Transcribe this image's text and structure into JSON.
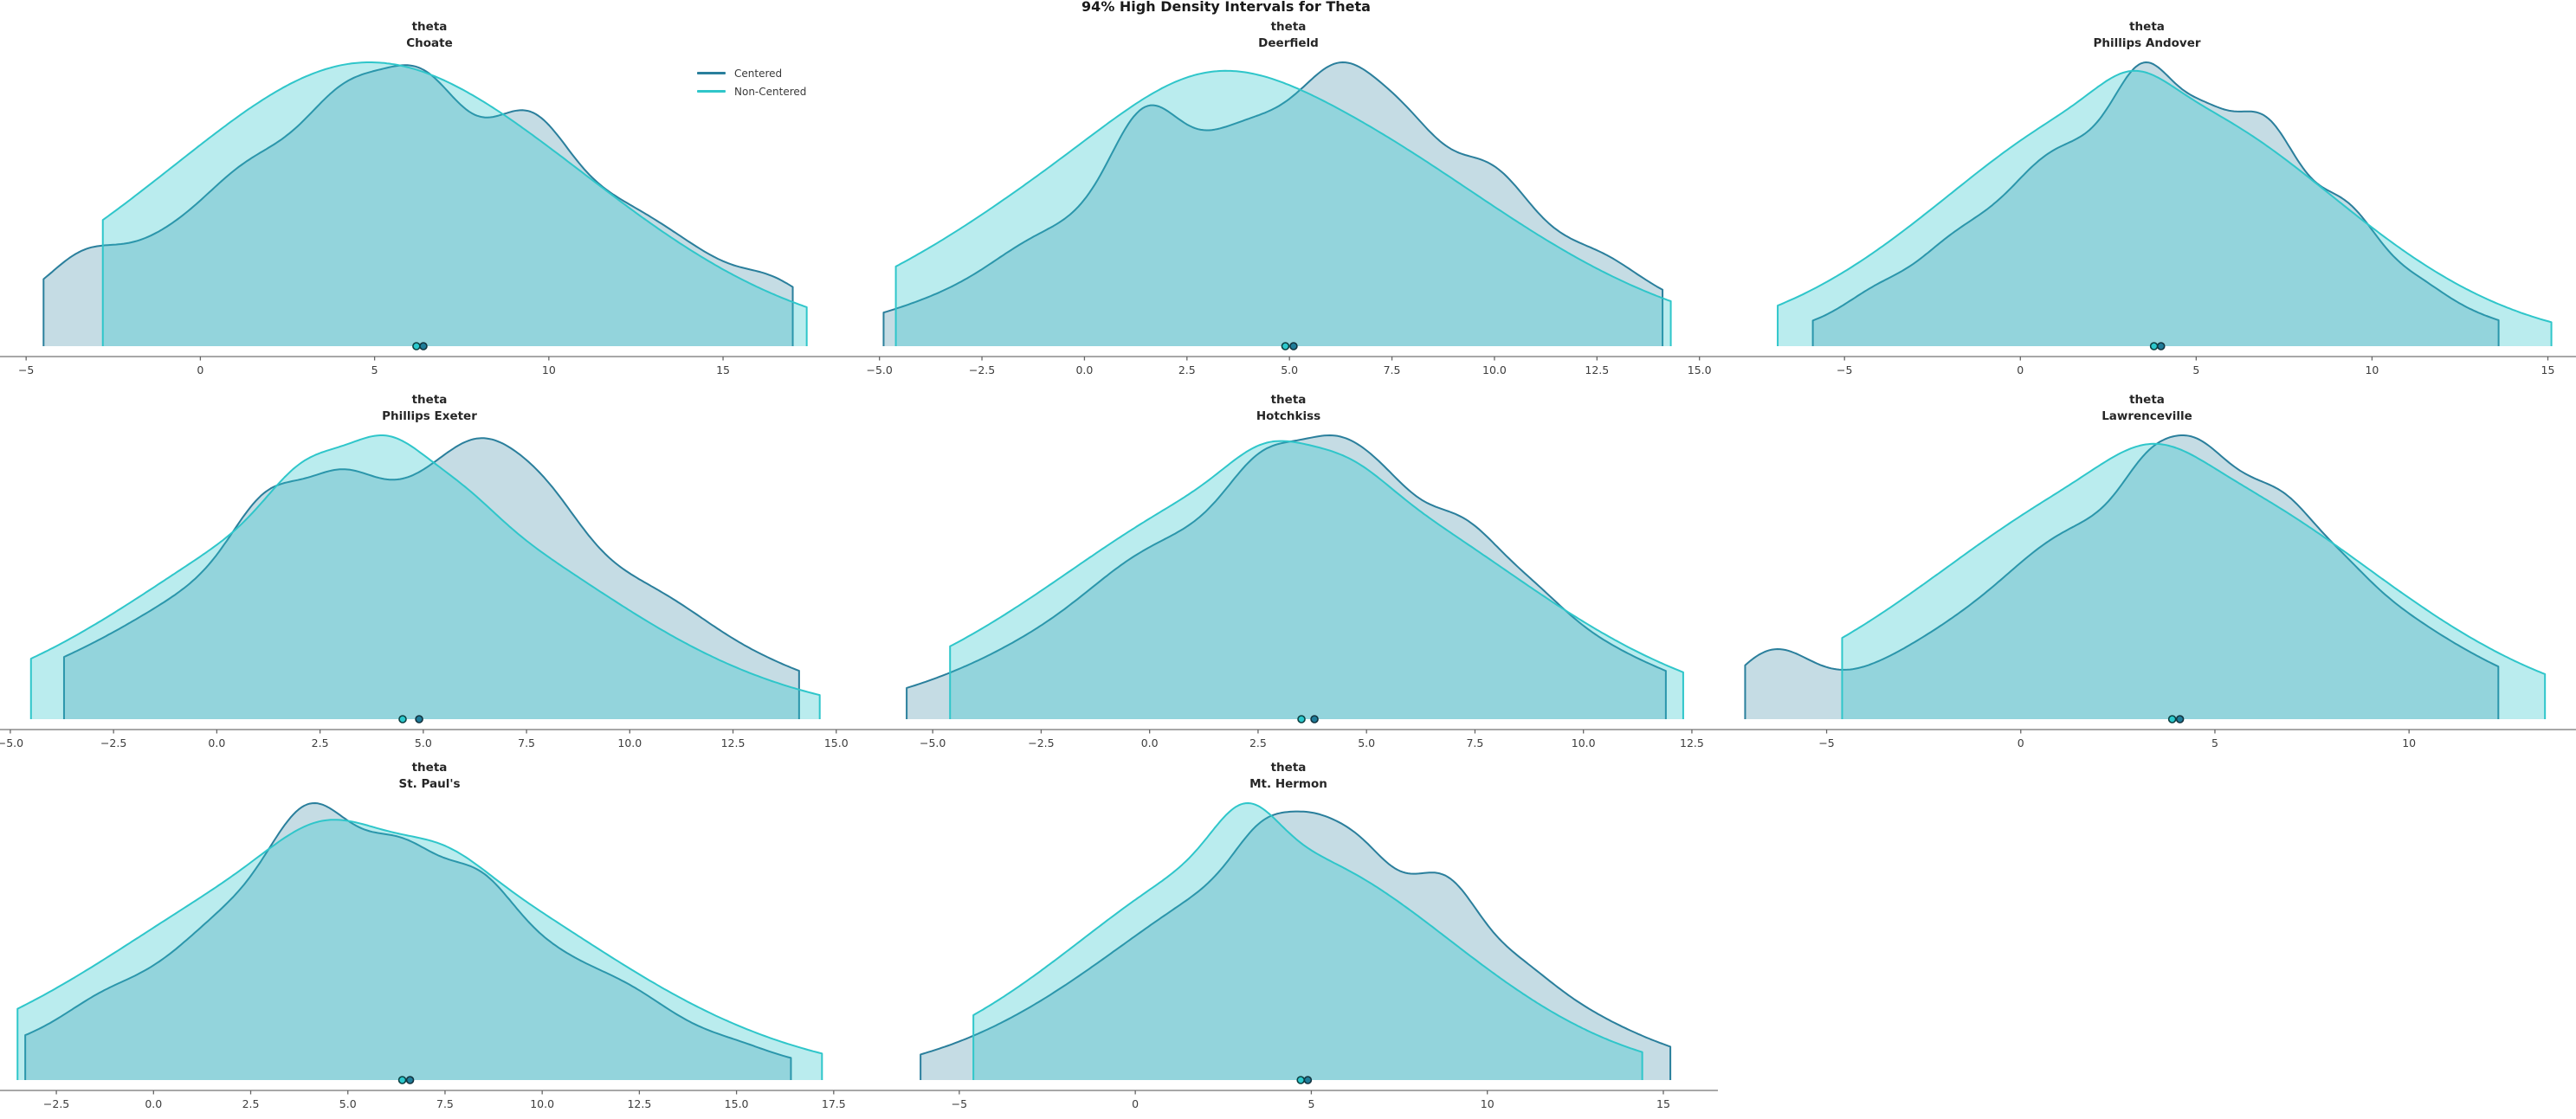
{
  "chart_data": {
    "type": "density",
    "suptitle": "94% High Density Intervals for Theta",
    "hdi_probability": "94%",
    "parameter": "theta",
    "legend": [
      {
        "name": "Centered",
        "color": "#2a7f9c"
      },
      {
        "name": "Non-Centered",
        "color": "#2fc6ca"
      }
    ],
    "style": {
      "centered_color": "#2a7f9c",
      "noncentered_color": "#2fc6ca",
      "centered_fill_opacity": 0.27,
      "noncentered_fill_opacity": 0.33,
      "axis_color": "#8c8c8c",
      "tick_mark_color": "#666666",
      "tick_label_color": "#3d3d3d",
      "title_color": "#262626",
      "centered_point": {
        "fill": "#1f7c99",
        "stroke": "#11333f"
      },
      "noncentered_point": {
        "fill": "#2cc9cd",
        "stroke": "#0c4143"
      }
    },
    "plots": [
      {
        "school": "Choate",
        "title_lines": [
          "theta",
          "Choate"
        ],
        "xlim": [
          -5.75,
          18.9
        ],
        "ticks": [
          {
            "v": -5,
            "label": "−5"
          },
          {
            "v": 0,
            "label": "0"
          },
          {
            "v": 5,
            "label": "5"
          },
          {
            "v": 10,
            "label": "10"
          },
          {
            "v": 15,
            "label": "15"
          }
        ],
        "series": {
          "centered": {
            "hdi": [
              -4.5,
              17.0
            ],
            "point_estimate": 6.4,
            "curve": {
              "m": 6.0,
              "s": 6.5,
              "peak": 0.99,
              "bumps": [
                [
                  -3.6,
                  0.9,
                  0.32
                ],
                [
                  1.2,
                  1.1,
                  0.14
                ],
                [
                  4.2,
                  1.2,
                  0.3
                ],
                [
                  6.4,
                  1.0,
                  0.28
                ],
                [
                  9.6,
                  1.0,
                  0.3
                ],
                [
                  13.0,
                  1.5,
                  0.1
                ],
                [
                  16.6,
                  0.8,
                  0.22
                ]
              ]
            }
          },
          "non_centered": {
            "hdi": [
              -2.8,
              17.4
            ],
            "point_estimate": 6.2,
            "curve": {
              "m": 5.0,
              "s": 6.3,
              "peak": 1.0,
              "bumps": [
                [
                  4.2,
                  3.0,
                  0.05
                ]
              ]
            }
          }
        }
      },
      {
        "school": "Deerfield",
        "title_lines": [
          "theta",
          "Deerfield"
        ],
        "xlim": [
          -5.5,
          15.45
        ],
        "ticks": [
          {
            "v": -5,
            "label": "−5.0"
          },
          {
            "v": -2.5,
            "label": "−2.5"
          },
          {
            "v": 0,
            "label": "0.0"
          },
          {
            "v": 2.5,
            "label": "2.5"
          },
          {
            "v": 5,
            "label": "5.0"
          },
          {
            "v": 7.5,
            "label": "7.5"
          },
          {
            "v": 10,
            "label": "10.0"
          },
          {
            "v": 12.5,
            "label": "12.5"
          },
          {
            "v": 15,
            "label": "15.0"
          }
        ],
        "series": {
          "centered": {
            "hdi": [
              -4.9,
              14.1
            ],
            "point_estimate": 5.1,
            "curve": {
              "m": 5.3,
              "s": 5.3,
              "peak": 1.0,
              "bumps": [
                [
                  -1.6,
                  0.9,
                  0.1
                ],
                [
                  1.35,
                  0.8,
                  0.45
                ],
                [
                  3.9,
                  1.0,
                  0.08
                ],
                [
                  6.3,
                  0.9,
                  0.32
                ],
                [
                  7.9,
                  0.8,
                  0.18
                ],
                [
                  10.1,
                  0.8,
                  0.24
                ],
                [
                  12.9,
                  0.8,
                  0.14
                ]
              ]
            }
          },
          "non_centered": {
            "hdi": [
              -4.6,
              14.3
            ],
            "point_estimate": 4.9,
            "curve": {
              "m": 3.9,
              "s": 5.6,
              "peak": 0.97,
              "bumps": [
                [
                  2.8,
                  2.0,
                  0.1
                ]
              ]
            }
          }
        }
      },
      {
        "school": "Phillips Andover",
        "title_lines": [
          "theta",
          "Phillips Andover"
        ],
        "xlim": [
          -8.6,
          15.8
        ],
        "ticks": [
          {
            "v": -5,
            "label": "−5"
          },
          {
            "v": 0,
            "label": "0"
          },
          {
            "v": 5,
            "label": "5"
          },
          {
            "v": 10,
            "label": "10"
          },
          {
            "v": 15,
            "label": "15"
          }
        ],
        "series": {
          "centered": {
            "hdi": [
              -5.9,
              13.6
            ],
            "point_estimate": 4.0,
            "curve": {
              "m": 3.9,
              "s": 4.7,
              "peak": 1.0,
              "bumps": [
                [
                  -4.4,
                  0.8,
                  0.2
                ],
                [
                  -2.2,
                  0.9,
                  0.12
                ],
                [
                  0.6,
                  0.9,
                  0.1
                ],
                [
                  3.5,
                  0.8,
                  0.3
                ],
                [
                  5.3,
                  0.7,
                  0.12
                ],
                [
                  7.1,
                  0.8,
                  0.3
                ],
                [
                  9.5,
                  0.8,
                  0.28
                ],
                [
                  11.6,
                  0.7,
                  0.1
                ]
              ]
            }
          },
          "non_centered": {
            "hdi": [
              -6.9,
              15.1
            ],
            "point_estimate": 3.8,
            "curve": {
              "m": 3.4,
              "s": 5.4,
              "peak": 0.97,
              "bumps": [
                [
                  3.2,
                  1.0,
                  0.1
                ]
              ]
            }
          }
        }
      },
      {
        "school": "Phillips Exeter",
        "title_lines": [
          "theta",
          "Phillips Exeter"
        ],
        "xlim": [
          -5.25,
          15.55
        ],
        "ticks": [
          {
            "v": -5,
            "label": "−5.0"
          },
          {
            "v": -2.5,
            "label": "−2.5"
          },
          {
            "v": 0,
            "label": "0.0"
          },
          {
            "v": 2.5,
            "label": "2.5"
          },
          {
            "v": 5,
            "label": "5.0"
          },
          {
            "v": 7.5,
            "label": "7.5"
          },
          {
            "v": 10,
            "label": "10.0"
          },
          {
            "v": 12.5,
            "label": "12.5"
          },
          {
            "v": 15,
            "label": "15.0"
          }
        ],
        "series": {
          "centered": {
            "hdi": [
              -3.7,
              14.1
            ],
            "point_estimate": 4.9,
            "curve": {
              "m": 4.8,
              "s": 5.3,
              "peak": 0.99,
              "bumps": [
                [
                  1.1,
                  0.8,
                  0.26
                ],
                [
                  2.9,
                  0.8,
                  0.16
                ],
                [
                  6.6,
                  1.1,
                  0.3
                ],
                [
                  8.2,
                  0.8,
                  0.14
                ],
                [
                  11.2,
                  1.0,
                  0.07
                ]
              ]
            }
          },
          "non_centered": {
            "hdi": [
              -4.5,
              14.6
            ],
            "point_estimate": 4.5,
            "curve": {
              "m": 3.8,
              "s": 5.1,
              "peak": 1.0,
              "bumps": [
                [
                  2.1,
                  0.9,
                  0.18
                ],
                [
                  4.1,
                  0.9,
                  0.22
                ],
                [
                  5.9,
                  0.9,
                  0.1
                ]
              ]
            }
          }
        }
      },
      {
        "school": "Hotchkiss",
        "title_lines": [
          "theta",
          "Hotchkiss"
        ],
        "xlim": [
          -6.7,
          13.1
        ],
        "ticks": [
          {
            "v": -5,
            "label": "−5.0"
          },
          {
            "v": -2.5,
            "label": "−2.5"
          },
          {
            "v": 0,
            "label": "0.0"
          },
          {
            "v": 2.5,
            "label": "2.5"
          },
          {
            "v": 5,
            "label": "5.0"
          },
          {
            "v": 7.5,
            "label": "7.5"
          },
          {
            "v": 10,
            "label": "10.0"
          },
          {
            "v": 12.5,
            "label": "12.5"
          }
        ],
        "series": {
          "centered": {
            "hdi": [
              -5.6,
              11.9
            ],
            "point_estimate": 3.8,
            "curve": {
              "m": 3.7,
              "s": 4.7,
              "peak": 1.0,
              "bumps": [
                [
                  -0.6,
                  1.0,
                  0.07
                ],
                [
                  2.6,
                  0.8,
                  0.22
                ],
                [
                  4.3,
                  0.8,
                  0.24
                ],
                [
                  5.5,
                  0.7,
                  0.12
                ],
                [
                  7.4,
                  0.8,
                  0.2
                ],
                [
                  9.0,
                  0.7,
                  0.1
                ]
              ]
            }
          },
          "non_centered": {
            "hdi": [
              -4.6,
              12.3
            ],
            "point_estimate": 3.5,
            "curve": {
              "m": 3.2,
              "s": 5.0,
              "peak": 0.98,
              "bumps": [
                [
                  2.7,
                  0.9,
                  0.12
                ],
                [
                  4.6,
                  0.9,
                  0.09
                ]
              ]
            }
          }
        }
      },
      {
        "school": "Lawrenceville",
        "title_lines": [
          "theta",
          "Lawrenceville"
        ],
        "xlim": [
          -7.8,
          14.3
        ],
        "ticks": [
          {
            "v": -5,
            "label": "−5"
          },
          {
            "v": 0,
            "label": "0"
          },
          {
            "v": 5,
            "label": "5"
          },
          {
            "v": 10,
            "label": "10"
          }
        ],
        "series": {
          "centered": {
            "hdi": [
              -7.1,
              12.3
            ],
            "point_estimate": 4.1,
            "curve": {
              "m": 4.2,
              "s": 4.8,
              "peak": 1.0,
              "bumps": [
                [
                  -6.9,
                  1.0,
                  3.0
                ],
                [
                  0.6,
                  1.0,
                  0.06
                ],
                [
                  3.3,
                  0.7,
                  0.2
                ],
                [
                  4.5,
                  0.7,
                  0.22
                ],
                [
                  5.7,
                  0.7,
                  0.1
                ],
                [
                  6.9,
                  0.7,
                  0.16
                ],
                [
                  8.3,
                  0.7,
                  0.07
                ]
              ]
            }
          },
          "non_centered": {
            "hdi": [
              -4.6,
              13.5
            ],
            "point_estimate": 3.9,
            "curve": {
              "m": 3.5,
              "s": 5.4,
              "peak": 0.97,
              "bumps": [
                [
                  3.4,
                  1.2,
                  0.1
                ]
              ]
            }
          }
        }
      },
      {
        "school": "St. Paul's",
        "title_lines": [
          "theta",
          "St. Paul's"
        ],
        "xlim": [
          -3.95,
          18.15
        ],
        "ticks": [
          {
            "v": -2.5,
            "label": "−2.5"
          },
          {
            "v": 0,
            "label": "0.0"
          },
          {
            "v": 2.5,
            "label": "2.5"
          },
          {
            "v": 5,
            "label": "5.0"
          },
          {
            "v": 7.5,
            "label": "7.5"
          },
          {
            "v": 10,
            "label": "10.0"
          },
          {
            "v": 12.5,
            "label": "12.5"
          },
          {
            "v": 15,
            "label": "15.0"
          },
          {
            "v": 17.5,
            "label": "17.5"
          }
        ],
        "series": {
          "centered": {
            "hdi": [
              -3.3,
              16.4
            ],
            "point_estimate": 6.6,
            "curve": {
              "m": 5.6,
              "s": 5.1,
              "peak": 1.0,
              "bumps": [
                [
                  -1.6,
                  0.8,
                  0.1
                ],
                [
                  1.6,
                  0.9,
                  0.08
                ],
                [
                  3.9,
                  1.0,
                  0.42
                ],
                [
                  6.4,
                  0.9,
                  0.18
                ],
                [
                  8.5,
                  0.8,
                  0.18
                ],
                [
                  12.5,
                  0.9,
                  0.1
                ],
                [
                  15.3,
                  0.7,
                  0.08
                ]
              ]
            }
          },
          "non_centered": {
            "hdi": [
              -3.5,
              17.2
            ],
            "point_estimate": 6.4,
            "curve": {
              "m": 5.3,
              "s": 5.7,
              "peak": 0.94,
              "bumps": [
                [
                  4.3,
                  1.3,
                  0.12
                ],
                [
                  7.6,
                  1.0,
                  0.07
                ]
              ]
            }
          }
        }
      },
      {
        "school": "Mt. Hermon",
        "title_lines": [
          "theta",
          "Mt. Hermon"
        ],
        "xlim": [
          -7.85,
          16.55
        ],
        "ticks": [
          {
            "v": -5,
            "label": "−5"
          },
          {
            "v": 0,
            "label": "0"
          },
          {
            "v": 5,
            "label": "5"
          },
          {
            "v": 10,
            "label": "10"
          },
          {
            "v": 15,
            "label": "15"
          }
        ],
        "series": {
          "centered": {
            "hdi": [
              -6.1,
              15.2
            ],
            "point_estimate": 4.9,
            "curve": {
              "m": 4.9,
              "s": 5.3,
              "peak": 0.97,
              "bumps": [
                [
                  3.6,
                  0.8,
                  0.18
                ],
                [
                  5.1,
                  0.8,
                  0.16
                ],
                [
                  6.4,
                  0.7,
                  0.1
                ],
                [
                  9.0,
                  0.8,
                  0.22
                ],
                [
                  11.2,
                  0.8,
                  0.05
                ]
              ]
            }
          },
          "non_centered": {
            "hdi": [
              -4.6,
              14.4
            ],
            "point_estimate": 4.7,
            "curve": {
              "m": 3.7,
              "s": 5.2,
              "peak": 1.0,
              "bumps": [
                [
                  3.1,
                  0.9,
                  0.2
                ]
              ]
            }
          }
        }
      }
    ]
  }
}
